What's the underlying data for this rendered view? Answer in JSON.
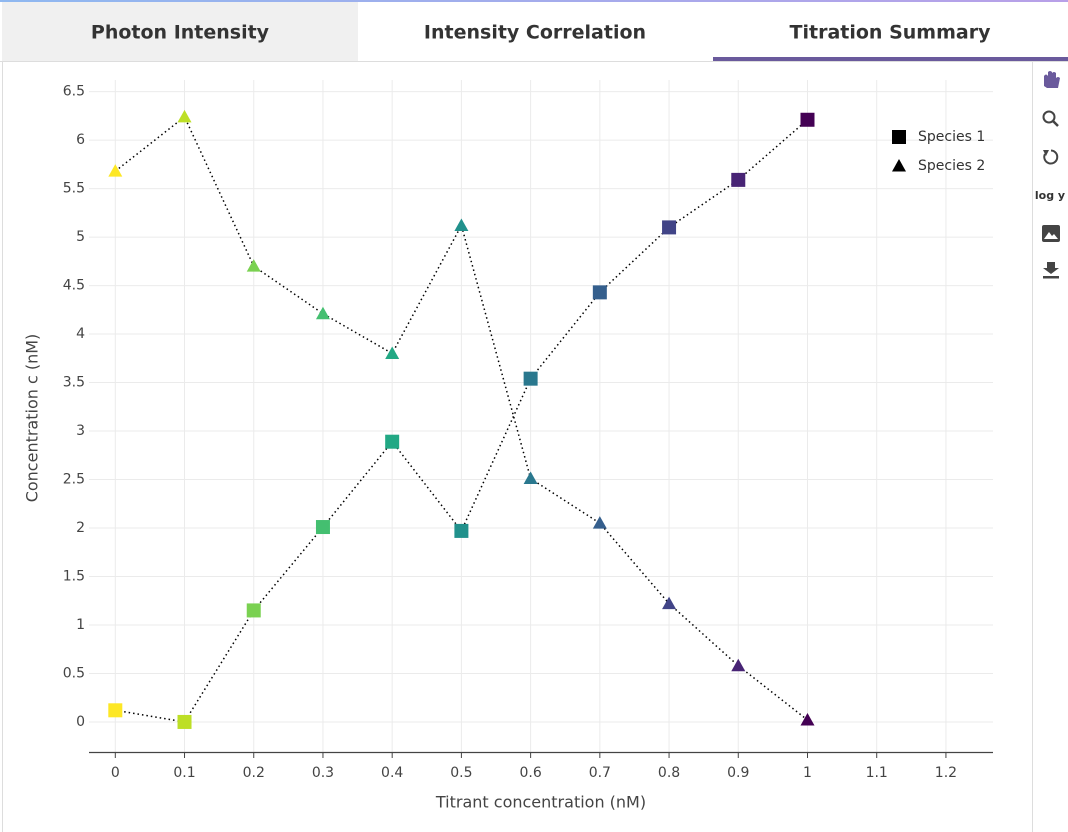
{
  "tabs": [
    "Photon Intensity",
    "Intensity Correlation",
    "Titration Summary"
  ],
  "toolbar": {
    "log_y": "log y"
  },
  "chart_data": {
    "type": "scatter",
    "x_label": "Titrant concentration (nM)",
    "y_label": "Concentration c (nM)",
    "x": [
      0,
      0.1,
      0.2,
      0.3,
      0.4,
      0.5,
      0.6,
      0.7,
      0.8,
      0.9,
      1
    ],
    "point_colors": [
      "#fde725",
      "#bddf26",
      "#7ad151",
      "#44bf70",
      "#22a884",
      "#21918c",
      "#2a788e",
      "#355f8d",
      "#414487",
      "#482475",
      "#440154"
    ],
    "series": [
      {
        "name": "Species 1",
        "color": "#000000",
        "marker": "square",
        "values": [
          0.12,
          0.0,
          1.15,
          2.01,
          2.89,
          1.97,
          3.54,
          4.43,
          5.1,
          5.59,
          6.21
        ]
      },
      {
        "name": "Species 2",
        "color": "#000000",
        "marker": "triangle",
        "values": [
          5.68,
          6.24,
          4.7,
          4.21,
          3.8,
          5.12,
          2.51,
          2.05,
          1.22,
          0.58,
          0.02
        ]
      }
    ],
    "xlim": [
      -0.038,
      1.268
    ],
    "ylim": [
      -0.31,
      6.62
    ],
    "xticks": [
      0,
      0.1,
      0.2,
      0.3,
      0.4,
      0.5,
      0.6,
      0.7,
      0.8,
      0.9,
      1,
      1.1,
      1.2
    ],
    "yticks": [
      0,
      0.5,
      1,
      1.5,
      2,
      2.5,
      3,
      3.5,
      4,
      4.5,
      5,
      5.5,
      6,
      6.5
    ],
    "grid": true,
    "legend": "top-right"
  }
}
